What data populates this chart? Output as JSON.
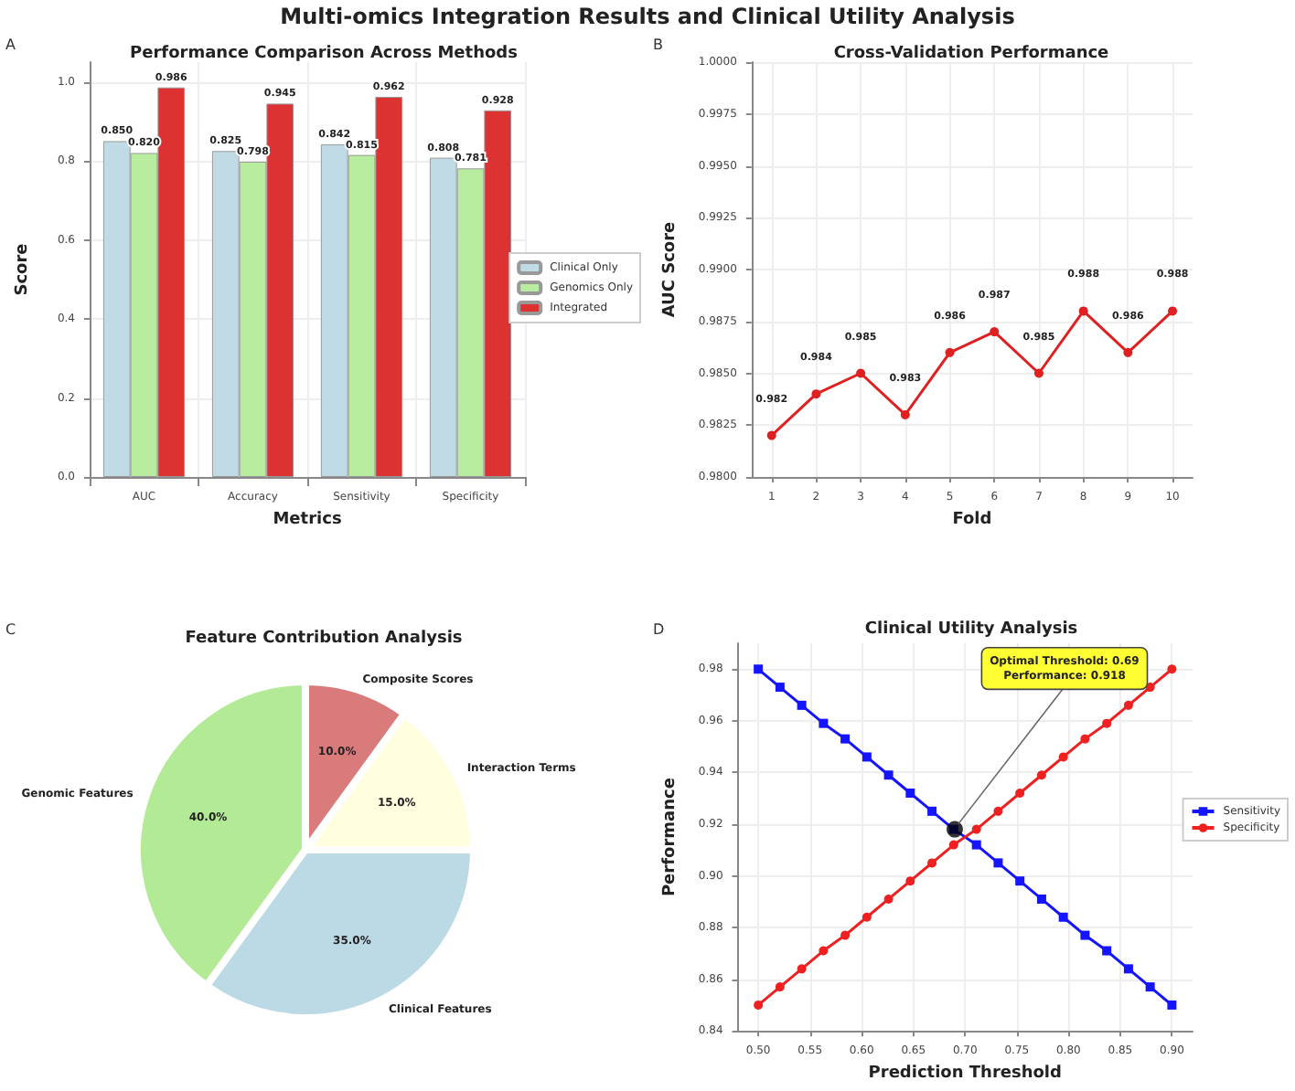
{
  "chart_data": [
    {
      "type": "bar",
      "title": "Performance Comparison Across Methods",
      "xlabel": "Metrics",
      "ylabel": "Score",
      "annotations": [
        "Multi-omics Integration Results and Clinical Utility Analysis",
        "A"
      ],
      "categories": [
        "AUC",
        "Accuracy",
        "Sensitivity",
        "Specificity"
      ],
      "series": [
        {
          "name": "Clinical Only",
          "color": "#c0dbe6",
          "values": [
            0.85,
            0.825,
            0.842,
            0.808
          ],
          "value_labels": [
            "0.850",
            "0.825",
            "0.842",
            "0.808"
          ]
        },
        {
          "name": "Genomics Only",
          "color": "#b8eda0",
          "values": [
            0.82,
            0.798,
            0.815,
            0.781
          ],
          "value_labels": [
            "0.820",
            "0.798",
            "0.815",
            "0.781"
          ]
        },
        {
          "name": "Integrated",
          "color": "#dc3232",
          "values": [
            0.986,
            0.945,
            0.962,
            0.928
          ],
          "value_labels": [
            "0.986",
            "0.945",
            "0.962",
            "0.928"
          ]
        }
      ],
      "ylim": [
        0,
        1.05
      ],
      "yticks": [
        {
          "value": 0,
          "label": "0.0"
        },
        {
          "value": 0.2,
          "label": "0.2"
        },
        {
          "value": 0.4,
          "label": "0.4"
        },
        {
          "value": 0.6,
          "label": "0.6"
        },
        {
          "value": 0.8,
          "label": "0.8"
        },
        {
          "value": 1,
          "label": "1.0"
        }
      ],
      "grid": true,
      "legend": "right"
    },
    {
      "type": "line",
      "title": "Cross-Validation Performance",
      "xlabel": "Fold",
      "ylabel": "AUC Score",
      "annotations": [
        "B"
      ],
      "x": [
        1,
        2,
        3,
        4,
        5,
        6,
        7,
        8,
        9,
        10
      ],
      "series": [
        {
          "color": "#e02020",
          "values": [
            0.982,
            0.984,
            0.985,
            0.983,
            0.986,
            0.987,
            0.985,
            0.988,
            0.986,
            0.988
          ]
        }
      ],
      "xlim": [
        0.55,
        10.45
      ],
      "xticks": [
        1,
        2,
        3,
        4,
        5,
        6,
        7,
        8,
        9,
        10
      ],
      "ylim": [
        0.98,
        1.0
      ],
      "yticks": [
        {
          "value": 0.98,
          "label": "0.9800"
        },
        {
          "value": 0.9825,
          "label": "0.9825"
        },
        {
          "value": 0.985,
          "label": "0.9850"
        },
        {
          "value": 0.9875,
          "label": "0.9875"
        },
        {
          "value": 0.99,
          "label": "0.9900"
        },
        {
          "value": 0.9925,
          "label": "0.9925"
        },
        {
          "value": 0.995,
          "label": "0.9950"
        },
        {
          "value": 0.9975,
          "label": "0.9975"
        },
        {
          "value": 1.0,
          "label": "1.0000"
        }
      ],
      "grid": true,
      "data_labels": true,
      "marker": "circle",
      "legend": false
    },
    {
      "type": "pie",
      "title": "Feature Contribution Analysis",
      "annotations": [
        "C"
      ],
      "categories": [
        "Genomic Features",
        "Clinical Features",
        "Interaction Terms",
        "Composite Scores"
      ],
      "values": [
        40,
        35,
        15,
        10
      ],
      "value_labels": [
        "40.0%",
        "35.0%",
        "15.0%",
        "10.0%"
      ],
      "colors": [
        "#b3ea95",
        "#bcd9e6",
        "#ffffe0",
        "#d97b7b"
      ]
    },
    {
      "type": "line",
      "title": "Clinical Utility Analysis",
      "xlabel": "Prediction Threshold",
      "ylabel": "Performance",
      "annotations": [
        "D",
        {
          "text": "Optimal Threshold: 0.69\nPerformance: 0.918",
          "x": 0.69,
          "y": 0.918
        }
      ],
      "x": [
        0.5,
        0.521,
        0.542,
        0.563,
        0.584,
        0.605,
        0.626,
        0.647,
        0.668,
        0.689,
        0.711,
        0.732,
        0.753,
        0.774,
        0.795,
        0.816,
        0.837,
        0.858,
        0.879,
        0.9
      ],
      "series": [
        {
          "name": "Sensitivity",
          "color": "#1414ff",
          "marker": "square",
          "values": [
            0.98,
            0.973,
            0.966,
            0.959,
            0.953,
            0.946,
            0.939,
            0.932,
            0.925,
            0.918,
            0.912,
            0.905,
            0.898,
            0.891,
            0.884,
            0.877,
            0.871,
            0.864,
            0.857,
            0.85
          ]
        },
        {
          "name": "Specificity",
          "color": "#ee2020",
          "marker": "circle",
          "values": [
            0.85,
            0.857,
            0.864,
            0.871,
            0.877,
            0.884,
            0.891,
            0.898,
            0.905,
            0.912,
            0.918,
            0.925,
            0.932,
            0.939,
            0.946,
            0.953,
            0.959,
            0.966,
            0.973,
            0.98
          ]
        },
        {
          "type": "scatter",
          "color": "#000000",
          "marker": "circle",
          "x": [
            0.69
          ],
          "values": [
            0.918
          ]
        }
      ],
      "xlim": [
        0.48,
        0.92
      ],
      "xticks": [
        {
          "value": 0.5,
          "label": "0.50"
        },
        {
          "value": 0.55,
          "label": "0.55"
        },
        {
          "value": 0.6,
          "label": "0.60"
        },
        {
          "value": 0.65,
          "label": "0.65"
        },
        {
          "value": 0.7,
          "label": "0.70"
        },
        {
          "value": 0.75,
          "label": "0.75"
        },
        {
          "value": 0.8,
          "label": "0.80"
        },
        {
          "value": 0.85,
          "label": "0.85"
        },
        {
          "value": 0.9,
          "label": "0.90"
        }
      ],
      "ylim": [
        0.84,
        0.99
      ],
      "yticks": [
        {
          "value": 0.84,
          "label": "0.84"
        },
        {
          "value": 0.86,
          "label": "0.86"
        },
        {
          "value": 0.88,
          "label": "0.88"
        },
        {
          "value": 0.9,
          "label": "0.90"
        },
        {
          "value": 0.92,
          "label": "0.92"
        },
        {
          "value": 0.94,
          "label": "0.94"
        },
        {
          "value": 0.96,
          "label": "0.96"
        },
        {
          "value": 0.98,
          "label": "0.98"
        }
      ],
      "grid": true,
      "legend": "right"
    }
  ]
}
